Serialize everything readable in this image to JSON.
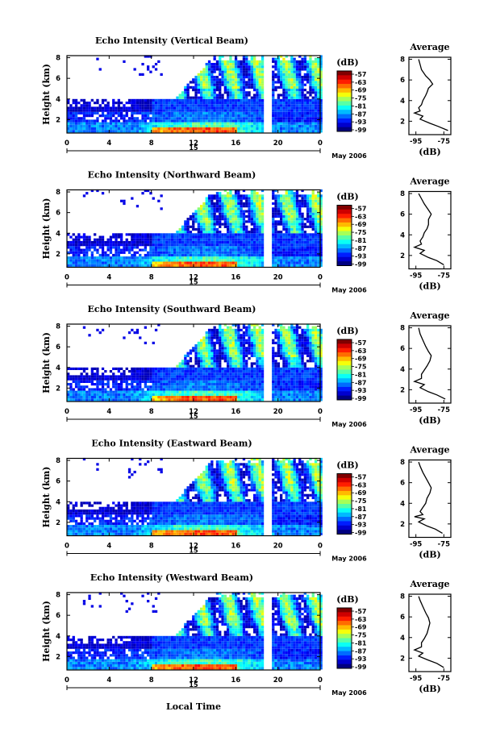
{
  "chart_data": [
    {
      "type": "heatmap",
      "title": "Echo Intensity (Vertical Beam)",
      "ylabel": "Height (km)",
      "yticks": [
        "2",
        "4",
        "6",
        "8"
      ],
      "xticks": [
        "0",
        "4",
        "8",
        "12",
        "16",
        "20",
        "0"
      ],
      "day_label": "15",
      "date_label": "May 2006",
      "colorbar": {
        "unit": "(dB)",
        "ticks": [
          "-57",
          "-63",
          "-69",
          "-75",
          "-81",
          "-87",
          "-93",
          "-99"
        ]
      },
      "average": {
        "title": "Average",
        "xlabel": "(dB)",
        "xticks": [
          "-95",
          "-75"
        ],
        "yticks": [
          "2",
          "4",
          "6",
          "8"
        ],
        "profile": [
          [
            -72,
            1.1
          ],
          [
            -79,
            1.5
          ],
          [
            -85,
            1.8
          ],
          [
            -92,
            2.2
          ],
          [
            -90,
            2.5
          ],
          [
            -96,
            2.8
          ],
          [
            -92,
            3.0
          ],
          [
            -93,
            3.3
          ],
          [
            -91,
            3.6
          ],
          [
            -90,
            4.0
          ],
          [
            -88,
            4.5
          ],
          [
            -87,
            4.8
          ],
          [
            -86,
            5.2
          ],
          [
            -83,
            5.6
          ],
          [
            -85,
            6.0
          ],
          [
            -88,
            6.4
          ],
          [
            -91,
            7.0
          ],
          [
            -92,
            7.5
          ],
          [
            -93,
            8.0
          ]
        ]
      }
    },
    {
      "type": "heatmap",
      "title": "Echo Intensity (Northward Beam)",
      "ylabel": "Height (km)",
      "yticks": [
        "2",
        "4",
        "6",
        "8"
      ],
      "xticks": [
        "0",
        "4",
        "8",
        "12",
        "16",
        "20",
        "0"
      ],
      "day_label": "15",
      "date_label": "May 2006",
      "colorbar": {
        "unit": "(dB)",
        "ticks": [
          "-57",
          "-63",
          "-69",
          "-75",
          "-81",
          "-87",
          "-93",
          "-99"
        ]
      },
      "average": {
        "title": "Average",
        "xlabel": "(dB)",
        "xticks": [
          "-95",
          "-75"
        ],
        "yticks": [
          "2",
          "4",
          "6",
          "8"
        ],
        "profile": [
          [
            -75,
            1.1
          ],
          [
            -80,
            1.5
          ],
          [
            -86,
            1.8
          ],
          [
            -92,
            2.2
          ],
          [
            -89,
            2.5
          ],
          [
            -96,
            2.8
          ],
          [
            -91,
            3.1
          ],
          [
            -92,
            3.4
          ],
          [
            -90,
            3.8
          ],
          [
            -89,
            4.2
          ],
          [
            -87,
            4.6
          ],
          [
            -86,
            5.0
          ],
          [
            -86,
            5.5
          ],
          [
            -84,
            6.0
          ],
          [
            -86,
            6.4
          ],
          [
            -89,
            7.0
          ],
          [
            -91,
            7.5
          ],
          [
            -93,
            8.0
          ]
        ]
      }
    },
    {
      "type": "heatmap",
      "title": "Echo Intensity (Southward Beam)",
      "ylabel": "Height (km)",
      "yticks": [
        "2",
        "4",
        "6",
        "8"
      ],
      "xticks": [
        "0",
        "4",
        "8",
        "12",
        "16",
        "20",
        "0"
      ],
      "day_label": "15",
      "date_label": "May 2006",
      "colorbar": {
        "unit": "(dB)",
        "ticks": [
          "-57",
          "-63",
          "-69",
          "-75",
          "-81",
          "-87",
          "-93",
          "-99"
        ]
      },
      "average": {
        "title": "Average",
        "xlabel": "(dB)",
        "xticks": [
          "-95",
          "-75"
        ],
        "yticks": [
          "2",
          "4",
          "6",
          "8"
        ],
        "profile": [
          [
            -74,
            1.1
          ],
          [
            -80,
            1.5
          ],
          [
            -86,
            1.8
          ],
          [
            -92,
            2.2
          ],
          [
            -89,
            2.5
          ],
          [
            -96,
            2.8
          ],
          [
            -91,
            3.1
          ],
          [
            -91,
            3.5
          ],
          [
            -89,
            3.9
          ],
          [
            -87,
            4.3
          ],
          [
            -85,
            4.8
          ],
          [
            -84,
            5.3
          ],
          [
            -86,
            5.7
          ],
          [
            -88,
            6.2
          ],
          [
            -90,
            6.8
          ],
          [
            -92,
            7.4
          ],
          [
            -93,
            8.0
          ]
        ]
      }
    },
    {
      "type": "heatmap",
      "title": "Echo Intensity (Eastward Beam)",
      "ylabel": "Height (km)",
      "yticks": [
        "2",
        "4",
        "6",
        "8"
      ],
      "xticks": [
        "0",
        "4",
        "8",
        "12",
        "16",
        "20",
        "0"
      ],
      "day_label": "15",
      "date_label": "May 2006",
      "colorbar": {
        "unit": "(dB)",
        "ticks": [
          "-57",
          "-63",
          "-69",
          "-75",
          "-81",
          "-87",
          "-93",
          "-99"
        ]
      },
      "average": {
        "title": "Average",
        "xlabel": "(dB)",
        "xticks": [
          "-95",
          "-75"
        ],
        "yticks": [
          "2",
          "4",
          "6",
          "8"
        ],
        "profile": [
          [
            -76,
            1.1
          ],
          [
            -81,
            1.5
          ],
          [
            -87,
            1.8
          ],
          [
            -93,
            2.2
          ],
          [
            -89,
            2.5
          ],
          [
            -96,
            2.7
          ],
          [
            -90,
            2.9
          ],
          [
            -92,
            3.2
          ],
          [
            -90,
            3.6
          ],
          [
            -88,
            4.0
          ],
          [
            -87,
            4.5
          ],
          [
            -85,
            5.0
          ],
          [
            -84,
            5.5
          ],
          [
            -86,
            6.0
          ],
          [
            -88,
            6.5
          ],
          [
            -90,
            7.0
          ],
          [
            -92,
            7.6
          ],
          [
            -93,
            8.0
          ]
        ]
      }
    },
    {
      "type": "heatmap",
      "title": "Echo Intensity (Westward Beam)",
      "ylabel": "Height (km)",
      "yticks": [
        "2",
        "4",
        "6",
        "8"
      ],
      "xticks": [
        "0",
        "4",
        "8",
        "12",
        "16",
        "20",
        "0"
      ],
      "day_label": "15",
      "date_label": "May 2006",
      "colorbar": {
        "unit": "(dB)",
        "ticks": [
          "-57",
          "-63",
          "-69",
          "-75",
          "-81",
          "-87",
          "-93",
          "-99"
        ]
      },
      "average": {
        "title": "Average",
        "xlabel": "(dB)",
        "xticks": [
          "-95",
          "-75"
        ],
        "yticks": [
          "2",
          "4",
          "6",
          "8"
        ],
        "profile": [
          [
            -75,
            1.1
          ],
          [
            -80,
            1.5
          ],
          [
            -86,
            1.8
          ],
          [
            -93,
            2.2
          ],
          [
            -90,
            2.5
          ],
          [
            -96,
            2.8
          ],
          [
            -91,
            3.1
          ],
          [
            -91,
            3.5
          ],
          [
            -89,
            3.9
          ],
          [
            -87,
            4.4
          ],
          [
            -86,
            4.9
          ],
          [
            -85,
            5.4
          ],
          [
            -86,
            5.9
          ],
          [
            -88,
            6.4
          ],
          [
            -90,
            7.0
          ],
          [
            -92,
            7.6
          ],
          [
            -93,
            8.0
          ]
        ]
      }
    }
  ],
  "xlabel": "Local Time"
}
